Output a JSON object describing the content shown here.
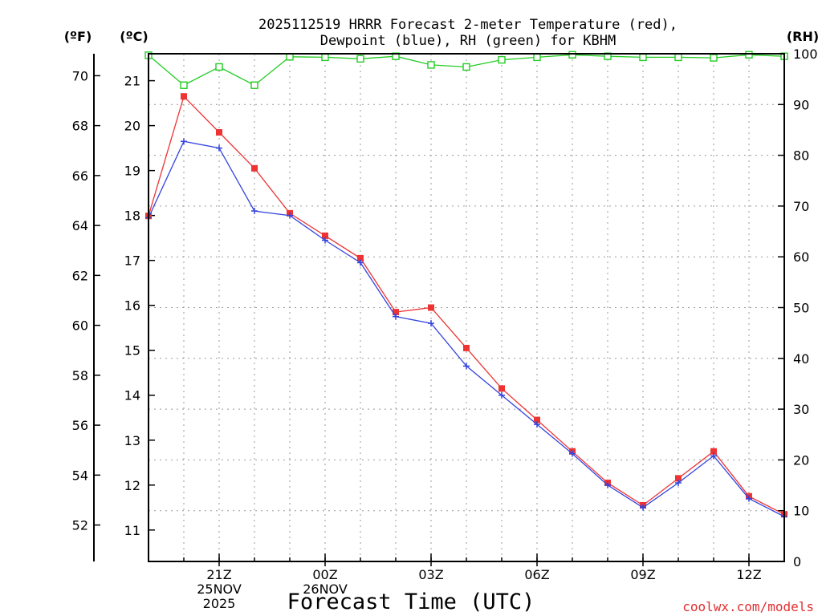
{
  "chart_data": {
    "type": "line",
    "title_line1": "2025112519 HRRR Forecast 2-meter Temperature (red),",
    "title_line2": "Dewpoint (blue), RH (green) for KBHM",
    "xlabel": "Forecast Time (UTC)",
    "credit": "coolwx.com/models",
    "units": {
      "fahrenheit": "(ºF)",
      "celsius": "(ºC)",
      "rh": "(RH)"
    },
    "x_hours": [
      19,
      20,
      21,
      22,
      23,
      24,
      25,
      26,
      27,
      28,
      29,
      30,
      31,
      32,
      33,
      34,
      35,
      36,
      37
    ],
    "xlim": [
      19,
      37
    ],
    "x_ticks": [
      {
        "hour": 21,
        "lines": [
          "21Z",
          "25NOV",
          "2025"
        ]
      },
      {
        "hour": 24,
        "lines": [
          "00Z",
          "26NOV"
        ]
      },
      {
        "hour": 27,
        "lines": [
          "03Z"
        ]
      },
      {
        "hour": 30,
        "lines": [
          "06Z"
        ]
      },
      {
        "hour": 33,
        "lines": [
          "09Z"
        ]
      },
      {
        "hour": 36,
        "lines": [
          "12Z"
        ]
      }
    ],
    "celsius_axis": {
      "ylim": [
        10.3,
        21.6
      ],
      "ticks": [
        11,
        12,
        13,
        14,
        15,
        16,
        17,
        18,
        19,
        20,
        21
      ]
    },
    "fahrenheit_axis": {
      "ticks": [
        52,
        54,
        56,
        58,
        60,
        62,
        64,
        66,
        68,
        70
      ]
    },
    "rh_axis": {
      "ylim": [
        0,
        100
      ],
      "ticks": [
        0,
        10,
        20,
        30,
        40,
        50,
        60,
        70,
        80,
        90,
        100
      ]
    },
    "series": [
      {
        "name": "Temperature",
        "color": "#ee3333",
        "marker": "filled-square",
        "axis": "celsius",
        "values": [
          17.99,
          20.65,
          19.85,
          19.05,
          18.05,
          17.55,
          17.05,
          15.85,
          15.95,
          15.05,
          14.15,
          13.45,
          12.75,
          12.05,
          11.55,
          12.15,
          12.75,
          11.75,
          11.35
        ]
      },
      {
        "name": "Dewpoint",
        "color": "#3344dd",
        "marker": "plus",
        "axis": "celsius",
        "values": [
          17.95,
          19.65,
          19.5,
          18.1,
          18.0,
          17.45,
          16.95,
          15.75,
          15.6,
          14.65,
          14.0,
          13.35,
          12.7,
          12.0,
          11.5,
          12.05,
          12.65,
          11.7,
          11.3
        ]
      },
      {
        "name": "RH",
        "color": "#22cc22",
        "marker": "open-square",
        "axis": "rh",
        "values": [
          99.7,
          93.8,
          97.4,
          93.8,
          99.4,
          99.3,
          99.0,
          99.5,
          97.8,
          97.4,
          98.8,
          99.3,
          99.8,
          99.5,
          99.3,
          99.3,
          99.2,
          99.8,
          99.5
        ]
      }
    ]
  }
}
